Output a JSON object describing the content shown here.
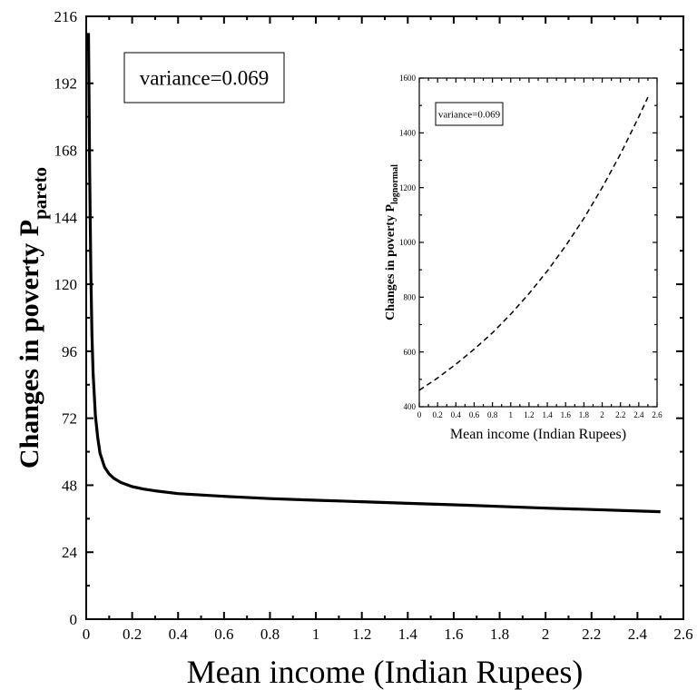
{
  "chart_data": [
    {
      "id": "main",
      "type": "line",
      "xlabel": "Mean income (Indian Rupees)",
      "ylabel_main": "Changes in poverty P",
      "ylabel_sub": "pareto",
      "annotation": "variance=0.069",
      "xlim": [
        0,
        2.6
      ],
      "ylim": [
        0,
        216
      ],
      "x_ticks": [
        0,
        0.2,
        0.4,
        0.6,
        0.8,
        1,
        1.2,
        1.4,
        1.6,
        1.8,
        2,
        2.2,
        2.4,
        2.6
      ],
      "x_tick_labels": [
        "0",
        "0.2",
        "0.4",
        "0.6",
        "0.8",
        "1",
        "1.2",
        "1.4",
        "1.6",
        "1.8",
        "2",
        "2.2",
        "2.4",
        "2.6"
      ],
      "y_ticks": [
        0,
        24,
        48,
        72,
        96,
        120,
        144,
        168,
        192,
        216
      ],
      "y_tick_labels": [
        "0",
        "24",
        "48",
        "72",
        "96",
        "120",
        "144",
        "168",
        "192",
        "216"
      ],
      "series": [
        {
          "style": "solid",
          "color": "#000000",
          "x": [
            0.01,
            0.015,
            0.02,
            0.025,
            0.03,
            0.04,
            0.05,
            0.06,
            0.08,
            0.1,
            0.12,
            0.15,
            0.2,
            0.25,
            0.3,
            0.4,
            0.5,
            0.6,
            0.8,
            1.0,
            1.2,
            1.4,
            1.6,
            1.8,
            2.0,
            2.2,
            2.5
          ],
          "y": [
            210,
            160,
            124,
            102,
            88,
            73,
            65,
            59.5,
            54.5,
            52,
            50.5,
            49,
            47.5,
            46.6,
            46,
            45,
            44.5,
            44,
            43.2,
            42.6,
            42.1,
            41.5,
            41,
            40.4,
            39.8,
            39.3,
            38.5
          ]
        }
      ]
    },
    {
      "id": "inset",
      "type": "line",
      "xlabel": "Mean income (Indian Rupees)",
      "ylabel_main": "Changes in poverty P",
      "ylabel_sub": "lognormal",
      "annotation": "variance=0.069",
      "xlim": [
        0,
        2.6
      ],
      "ylim": [
        400,
        1600
      ],
      "x_ticks": [
        0,
        0.2,
        0.4,
        0.6,
        0.8,
        1,
        1.2,
        1.4,
        1.6,
        1.8,
        2,
        2.2,
        2.4,
        2.6
      ],
      "x_tick_labels": [
        "0",
        "0.2",
        "0.4",
        "0.6",
        "0.8",
        "1",
        "1.2",
        "1.4",
        "1.6",
        "1.8",
        "2",
        "2.2",
        "2.4",
        "2.6"
      ],
      "y_ticks": [
        400,
        600,
        800,
        1000,
        1200,
        1400,
        1600
      ],
      "y_tick_labels": [
        "400",
        "600",
        "800",
        "1000",
        "1200",
        "1400",
        "1600"
      ],
      "series": [
        {
          "style": "dashed",
          "color": "#000000",
          "x": [
            0,
            0.2,
            0.4,
            0.6,
            0.8,
            1.0,
            1.2,
            1.4,
            1.6,
            1.8,
            2.0,
            2.2,
            2.4,
            2.5
          ],
          "y": [
            460,
            505,
            555,
            610,
            670,
            738,
            813,
            896,
            987,
            1088,
            1200,
            1323,
            1458,
            1530
          ]
        }
      ]
    }
  ]
}
